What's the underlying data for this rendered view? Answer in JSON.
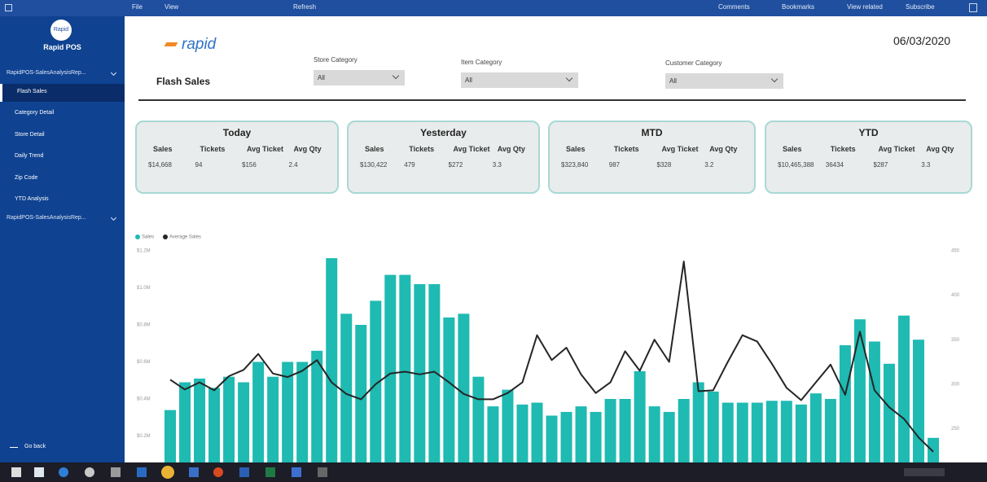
{
  "top_bar": {
    "items": [
      "File",
      "View",
      "Refresh",
      "Comments",
      "Bookmarks",
      "View related",
      "Subscribe"
    ]
  },
  "sidebar": {
    "logo": "Rapid",
    "app_name": "Rapid POS",
    "sections": [
      {
        "label": "RapidPOS-SalesAnalysisRep...",
        "pages": [
          "Flash Sales",
          "Category Detail",
          "Store Detail",
          "Daily Trend",
          "Zip Code",
          "YTD Analysis"
        ]
      },
      {
        "label": "RapidPOS-SalesAnalysisRep...",
        "pages": []
      }
    ],
    "go_back": "Go back"
  },
  "report": {
    "logo": "rapid",
    "title": "Flash Sales",
    "date": "06/03/2020",
    "filters": [
      {
        "label": "Store Category",
        "value": "All"
      },
      {
        "label": "Item Category",
        "value": "All"
      },
      {
        "label": "Customer Category",
        "value": "All"
      }
    ],
    "cards": [
      {
        "title": "Today",
        "columns": [
          "Sales",
          "Tickets",
          "Avg Ticket",
          "Avg Qty"
        ],
        "values": [
          "$14,668",
          "94",
          "$156",
          "2.4"
        ]
      },
      {
        "title": "Yesterday",
        "columns": [
          "Sales",
          "Tickets",
          "Avg Ticket",
          "Avg Qty"
        ],
        "values": [
          "$130,422",
          "479",
          "$272",
          "3.3"
        ]
      },
      {
        "title": "MTD",
        "columns": [
          "Sales",
          "Tickets",
          "Avg Ticket",
          "Avg Qty"
        ],
        "values": [
          "$323,840",
          "987",
          "$328",
          "3.2"
        ]
      },
      {
        "title": "YTD",
        "columns": [
          "Sales",
          "Tickets",
          "Avg Ticket",
          "Avg Qty"
        ],
        "values": [
          "$10,465,388",
          "36434",
          "$287",
          "3.3"
        ]
      }
    ],
    "chart": {
      "type": "combo",
      "series": [
        {
          "name": "Sales",
          "type": "bar",
          "color": "#1fbab2",
          "values": [
            0.34,
            0.49,
            0.51,
            0.46,
            0.52,
            0.49,
            0.6,
            0.52,
            0.6,
            0.6,
            0.66,
            1.16,
            0.86,
            0.8,
            0.93,
            1.07,
            1.07,
            1.02,
            1.02,
            0.84,
            0.86,
            0.52,
            0.36,
            0.45,
            0.37,
            0.38,
            0.31,
            0.33,
            0.36,
            0.33,
            0.4,
            0.4,
            0.55,
            0.36,
            0.33,
            0.4,
            0.49,
            0.44,
            0.38,
            0.38,
            0.38,
            0.39,
            0.39,
            0.37,
            0.43,
            0.4,
            0.69,
            0.83,
            0.71,
            0.59,
            0.85,
            0.72,
            0.19
          ]
        },
        {
          "name": "Average Sales",
          "type": "line",
          "axis": "y2",
          "color": "#252525",
          "values": [
            305,
            294,
            302,
            293,
            309,
            316,
            334,
            312,
            308,
            315,
            327,
            302,
            289,
            283,
            300,
            312,
            314,
            311,
            314,
            302,
            289,
            283,
            283,
            290,
            302,
            355,
            327,
            341,
            311,
            290,
            302,
            337,
            315,
            350,
            325,
            438,
            292,
            293,
            325,
            355,
            348,
            323,
            296,
            282,
            302,
            322,
            288,
            359,
            293,
            274,
            261,
            240,
            224
          ]
        }
      ],
      "ylim": [
        0,
        1.2
      ],
      "yticks": [
        {
          "value": 0.2,
          "label": "$0.2M"
        },
        {
          "value": 0.4,
          "label": "$0.4M"
        },
        {
          "value": 0.6,
          "label": "$0.6M"
        },
        {
          "value": 0.8,
          "label": "$0.8M"
        },
        {
          "value": 1.0,
          "label": "$1.0M"
        },
        {
          "value": 1.2,
          "label": "$1.2M"
        }
      ],
      "y2lim": [
        200,
        450
      ],
      "y2ticks": [
        250,
        300,
        350,
        400,
        450
      ],
      "grid": false
    }
  }
}
